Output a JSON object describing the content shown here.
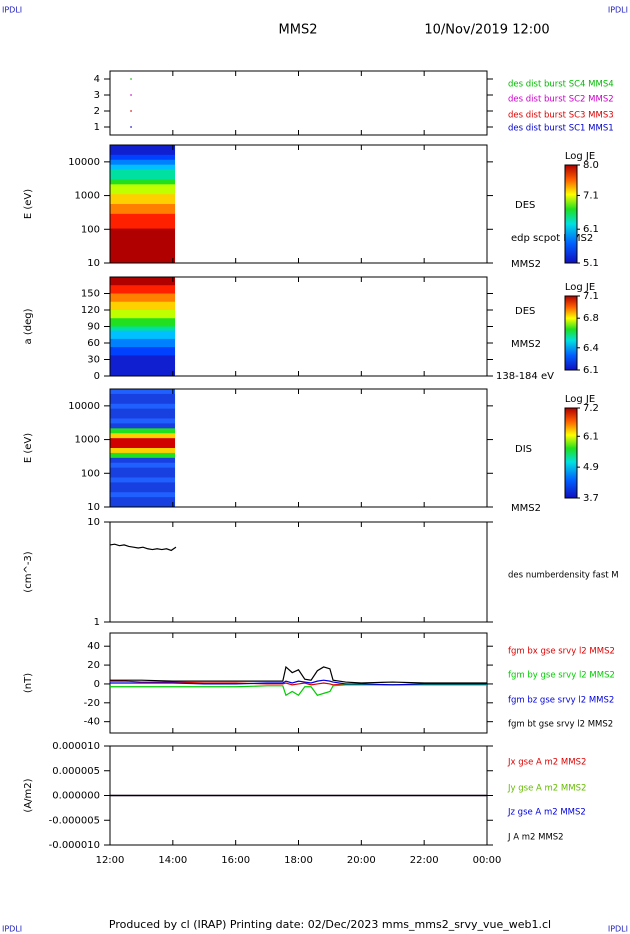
{
  "header": {
    "left": "IPDLI",
    "center": "MMS2",
    "date": "10/Nov/2019 12:00",
    "right": "IPDLI"
  },
  "footer": {
    "text": "Produced by cl (IRAP)   Printing date: 02/Dec/2023   mms_mms2_srvy_vue_web1.cl",
    "left": "IPDLI",
    "right": "IPDLI"
  },
  "time_axis": {
    "xlim": [
      12,
      24
    ],
    "xticks": [
      {
        "value": 12,
        "label": "12:00"
      },
      {
        "value": 14,
        "label": "14:00"
      },
      {
        "value": 16,
        "label": "16:00"
      },
      {
        "value": 18,
        "label": "18:00"
      },
      {
        "value": 20,
        "label": "20:00"
      },
      {
        "value": 22,
        "label": "22:00"
      },
      {
        "value": 24,
        "label": "00:00"
      }
    ]
  },
  "chart_data": [
    {
      "type": "scatter",
      "ylim": [
        0.5,
        4.5
      ],
      "yticks": [
        1,
        2,
        3,
        4
      ],
      "series": [
        {
          "name": "des dist burst SC1 MMS1",
          "color": "#0000cc",
          "x": [
            12.67
          ],
          "values": [
            1
          ]
        },
        {
          "name": "des dist burst SC2 MMS2",
          "color": "#cc00cc",
          "x": [
            12.67
          ],
          "values": [
            3
          ]
        },
        {
          "name": "des dist burst SC3 MMS3",
          "color": "#dd0000",
          "x": [
            12.67
          ],
          "values": [
            2
          ]
        },
        {
          "name": "des dist burst SC4 MMS4",
          "color": "#00bb00",
          "x": [
            12.67
          ],
          "values": [
            4
          ]
        }
      ]
    },
    {
      "type": "spectrogram",
      "ylabel": "E (eV)",
      "log": true,
      "ylim": [
        10,
        31623
      ],
      "yticks": [
        10,
        100,
        1000,
        10000
      ],
      "labels": [
        "DES",
        "edp scpot MMS2",
        "MMS2"
      ],
      "colorbar": {
        "title": "Log JE",
        "lim": [
          5.1,
          8
        ],
        "ticks": [
          {
            "value": 8,
            "label": "8.0"
          },
          7.1,
          6.1,
          5.1
        ]
      }
    },
    {
      "type": "spectrogram",
      "ylabel": "a (deg)",
      "ylim": [
        0,
        180
      ],
      "yticks": [
        0,
        30,
        60,
        90,
        120,
        150
      ],
      "labels": [
        "DES",
        "MMS2",
        "138-184 eV"
      ],
      "colorbar": {
        "title": "Log JE",
        "lim": [
          6.1,
          7.1
        ],
        "ticks": [
          7.1,
          6.8,
          6.4,
          6.1
        ]
      }
    },
    {
      "type": "spectrogram",
      "ylabel": "E (eV)",
      "log": true,
      "ylim": [
        10,
        31623
      ],
      "yticks": [
        10,
        100,
        1000,
        10000
      ],
      "labels": [
        "DIS",
        "MMS2"
      ],
      "colorbar": {
        "title": "Log JE",
        "lim": [
          3.7,
          7.2
        ],
        "ticks": [
          7.2,
          6.1,
          4.9,
          3.7
        ]
      }
    },
    {
      "type": "line",
      "ylabel": "(cm^-3)",
      "log": true,
      "ylim": [
        1,
        10
      ],
      "yticks": [
        1,
        10
      ],
      "series": [
        {
          "name": "des numberdensity fast M",
          "color": "#000000",
          "x": [
            12,
            12.15,
            12.3,
            12.45,
            12.6,
            12.75,
            12.9,
            13.05,
            13.2,
            13.35,
            13.5,
            13.65,
            13.8,
            13.95,
            14.1
          ],
          "values": [
            5.9,
            6.0,
            5.8,
            5.9,
            5.7,
            5.6,
            5.5,
            5.6,
            5.4,
            5.3,
            5.4,
            5.3,
            5.4,
            5.2,
            5.6
          ]
        }
      ]
    },
    {
      "type": "line",
      "ylabel": "(nT)",
      "ylim": [
        -52,
        54
      ],
      "yticks": [
        -40,
        -20,
        0,
        20,
        40
      ],
      "x": [
        12,
        12.5,
        13,
        14,
        15,
        16,
        17,
        17.5,
        17.6,
        17.8,
        18,
        18.2,
        18.4,
        18.6,
        18.8,
        19,
        19.1,
        19.5,
        20,
        21,
        22,
        23,
        24
      ],
      "series": [
        {
          "name": "fgm bx gse srvy l2 MMS2",
          "color": "#dd0000",
          "values": [
            3,
            3,
            2,
            2,
            1,
            1,
            0,
            0,
            1,
            -1,
            0,
            1,
            -1,
            0,
            1,
            0,
            -1,
            0,
            -1,
            -1,
            0,
            0,
            0
          ]
        },
        {
          "name": "fgm by gse srvy l2 MMS2",
          "color": "#00cc00",
          "values": [
            -3,
            -3,
            -3,
            -3,
            -3,
            -3,
            -2,
            -2,
            -12,
            -8,
            -12,
            -3,
            -3,
            -12,
            -10,
            -8,
            -2,
            -1,
            -1,
            -1,
            -1,
            -1,
            -1
          ]
        },
        {
          "name": "fgm bz gse srvy l2 MMS2",
          "color": "#0000dd",
          "values": [
            1,
            1,
            1,
            1,
            0,
            0,
            1,
            1,
            3,
            1,
            3,
            2,
            1,
            3,
            4,
            3,
            2,
            0,
            0,
            -1,
            0,
            0,
            0
          ]
        },
        {
          "name": "fgm bt gse srvy l2 MMS2",
          "color": "#000000",
          "values": [
            4,
            4,
            4,
            3,
            3,
            3,
            3,
            3,
            18,
            12,
            15,
            5,
            4,
            14,
            18,
            16,
            4,
            2,
            1,
            2,
            1,
            1,
            1
          ]
        }
      ]
    },
    {
      "type": "line",
      "ylabel": "(A/m2)",
      "ylim": [
        -1e-05,
        1e-05
      ],
      "yticks": [
        {
          "value": -1e-05,
          "label": "-0.000010"
        },
        {
          "value": -5e-06,
          "label": "-0.000005"
        },
        {
          "value": 0,
          "label": "0.000000"
        },
        {
          "value": 5e-06,
          "label": "0.000005"
        },
        {
          "value": 1e-05,
          "label": "0.000010"
        }
      ],
      "x": [
        12,
        15,
        18,
        21,
        24
      ],
      "series": [
        {
          "name": "Jx gse A m2 MMS2",
          "color": "#dd0000",
          "values": [
            0,
            0,
            0,
            0,
            0
          ]
        },
        {
          "name": "Jy gse A m2 MMS2",
          "color": "#66bb00",
          "values": [
            0,
            0,
            0,
            0,
            0
          ]
        },
        {
          "name": "Jz gse A m2 MMS2",
          "color": "#0000dd",
          "values": [
            0,
            0,
            0,
            0,
            0
          ]
        },
        {
          "name": "J A m2 MMS2",
          "color": "#000000",
          "values": [
            0,
            0,
            0,
            0,
            0
          ]
        }
      ]
    }
  ]
}
